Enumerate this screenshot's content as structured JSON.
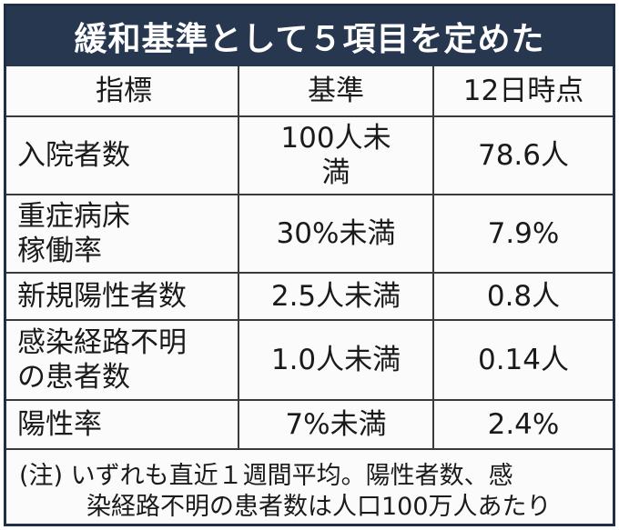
{
  "title": "緩和基準として５項目を定めた",
  "table": {
    "headers": [
      "指標",
      "基準",
      "12日時点"
    ],
    "rows": [
      {
        "indicator": [
          "入院者数"
        ],
        "standard": [
          "100人未",
          "満"
        ],
        "current": "78.6人"
      },
      {
        "indicator": [
          "重症病床",
          "稼働率"
        ],
        "standard": [
          "30%未満"
        ],
        "current": "7.9%"
      },
      {
        "indicator": [
          "新規陽性者数"
        ],
        "standard": [
          "2.5人未満"
        ],
        "current": "0.8人"
      },
      {
        "indicator": [
          "感染経路不明",
          "の患者数"
        ],
        "standard": [
          "1.0人未満"
        ],
        "current": "0.14人"
      },
      {
        "indicator": [
          "陽性率"
        ],
        "standard": [
          "7%未満"
        ],
        "current": "2.4%"
      }
    ]
  },
  "note": {
    "line1": "(注) いずれも直近１週間平均。陽性者数、感",
    "line2": "染経路不明の患者数は人口100万人あたり"
  }
}
